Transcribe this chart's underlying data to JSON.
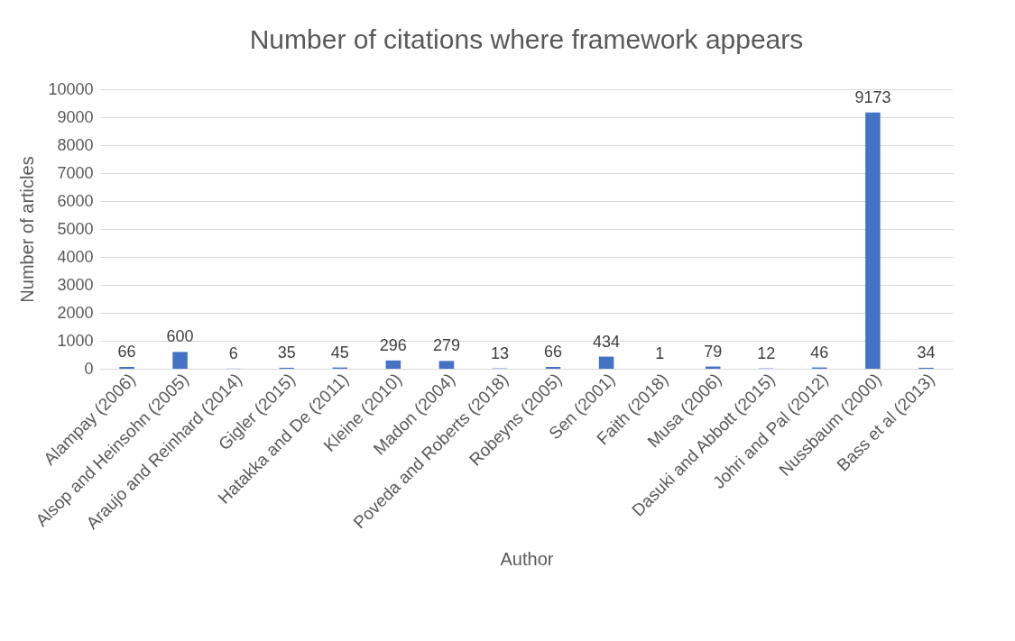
{
  "chart_data": {
    "type": "bar",
    "title": "Number of citations where framework appears",
    "xlabel": "Author",
    "ylabel": "Number of articles",
    "categories": [
      "Alampay (2006)",
      "Alsop and Heinsohn (2005)",
      "Araujo and Reinhard (2014)",
      "Gigler (2015)",
      "Hatakka and De (2011)",
      "Kleine (2010)",
      "Madon (2004)",
      "Poveda and Roberts (2018)",
      "Robeyns (2005)",
      "Sen (2001)",
      "Faith (2018)",
      "Musa (2006)",
      "Dasuki and Abbott (2015)",
      "Johri and Pal (2012)",
      "Nussbaum (2000)",
      "Bass et al (2013)"
    ],
    "values": [
      66,
      600,
      6,
      35,
      45,
      296,
      279,
      13,
      66,
      434,
      1,
      79,
      12,
      46,
      9173,
      34
    ],
    "color": "#4472c4",
    "ylim": [
      0,
      10000
    ],
    "yticks": [
      0,
      1000,
      2000,
      3000,
      4000,
      5000,
      6000,
      7000,
      8000,
      9000,
      10000
    ],
    "grid": "y",
    "data_labels": true
  }
}
